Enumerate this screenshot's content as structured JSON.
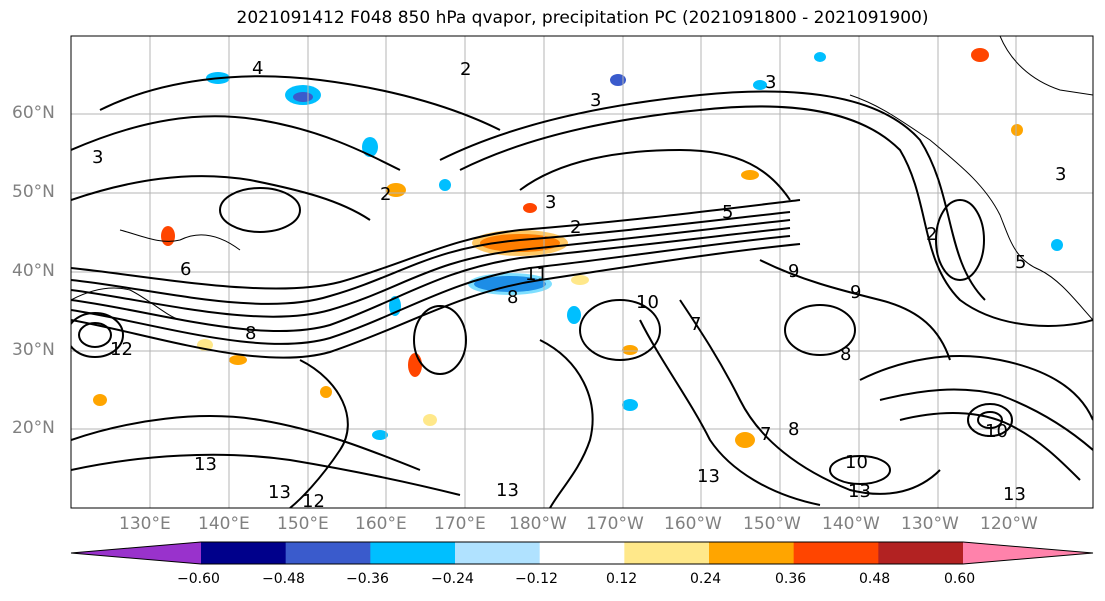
{
  "title": "2021091412 F048 850 hPa qvapor, precipitation PC (2021091800 - 2021091900)",
  "lat_labels": [
    "60°N",
    "50°N",
    "40°N",
    "30°N",
    "20°N"
  ],
  "lon_labels": [
    "130°E",
    "140°E",
    "150°E",
    "160°E",
    "170°E",
    "180°W",
    "170°W",
    "160°W",
    "150°W",
    "140°W",
    "130°W",
    "120°W"
  ],
  "contour_labels": [
    "3",
    "4",
    "2",
    "3",
    "3",
    "2",
    "3",
    "2",
    "5",
    "11",
    "9",
    "8",
    "10",
    "7",
    "8",
    "9",
    "8",
    "12",
    "13",
    "13",
    "13",
    "12",
    "13",
    "10",
    "10",
    "13",
    "7",
    "5",
    "2",
    "3",
    "13",
    "8",
    "6"
  ],
  "colorbar": {
    "ticks": [
      "−0.60",
      "−0.48",
      "−0.36",
      "−0.24",
      "−0.12",
      "0.12",
      "0.24",
      "0.36",
      "0.48",
      "0.60"
    ],
    "colors": [
      "#9932cc",
      "#00008b",
      "#3a5bcc",
      "#00bfff",
      "#b0e2ff",
      "#ffffff",
      "#ffe88a",
      "#ffa500",
      "#ff4500",
      "#b22222",
      "#ff82ab"
    ]
  },
  "colors": {
    "contour": "#000000",
    "coast": "#000000",
    "grid": "#b4b4b4",
    "axis_label": "#808080"
  }
}
